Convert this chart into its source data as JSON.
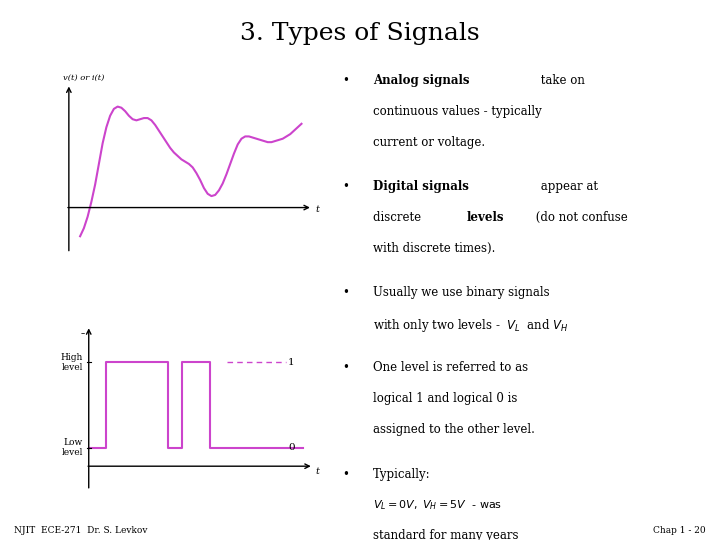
{
  "title": "3. Types of Signals",
  "title_fontsize": 18,
  "background_color": "#ffffff",
  "magenta_color": "#cc44cc",
  "text_color": "#000000",
  "footer_left": "NJIT  ECE-271  Dr. S. Levkov",
  "footer_right": "Chap 1 - 20",
  "analog_label": "v(t) or i(t)",
  "analog_t_label": "t",
  "digital_t_label": "t",
  "font_size_bullets": 8.5,
  "font_size_math": 8.0,
  "analog_signal_x": [
    0.15,
    0.2,
    0.25,
    0.3,
    0.35,
    0.4,
    0.45,
    0.5,
    0.55,
    0.6,
    0.65,
    0.7,
    0.75,
    0.8,
    0.85,
    0.9,
    0.95,
    1.0,
    1.05,
    1.1,
    1.15,
    1.2,
    1.25,
    1.3,
    1.35,
    1.4,
    1.45,
    1.5,
    1.55,
    1.6,
    1.65,
    1.7,
    1.75,
    1.8,
    1.85,
    1.9,
    1.95,
    2.0,
    2.05,
    2.1,
    2.15,
    2.2,
    2.25,
    2.3,
    2.35,
    2.4,
    2.45,
    2.5,
    2.55,
    2.6,
    2.65,
    2.7,
    2.75,
    2.8,
    2.85,
    2.9,
    2.95,
    3.0,
    3.05,
    3.1
  ],
  "analog_signal_y": [
    -0.25,
    -0.18,
    -0.08,
    0.05,
    0.2,
    0.38,
    0.56,
    0.7,
    0.8,
    0.86,
    0.88,
    0.87,
    0.84,
    0.8,
    0.77,
    0.76,
    0.77,
    0.78,
    0.78,
    0.76,
    0.72,
    0.67,
    0.62,
    0.57,
    0.52,
    0.48,
    0.45,
    0.42,
    0.4,
    0.38,
    0.35,
    0.3,
    0.24,
    0.17,
    0.12,
    0.1,
    0.11,
    0.15,
    0.21,
    0.29,
    0.38,
    0.47,
    0.55,
    0.6,
    0.62,
    0.62,
    0.61,
    0.6,
    0.59,
    0.58,
    0.57,
    0.57,
    0.58,
    0.59,
    0.6,
    0.62,
    0.64,
    0.67,
    0.7,
    0.73
  ]
}
